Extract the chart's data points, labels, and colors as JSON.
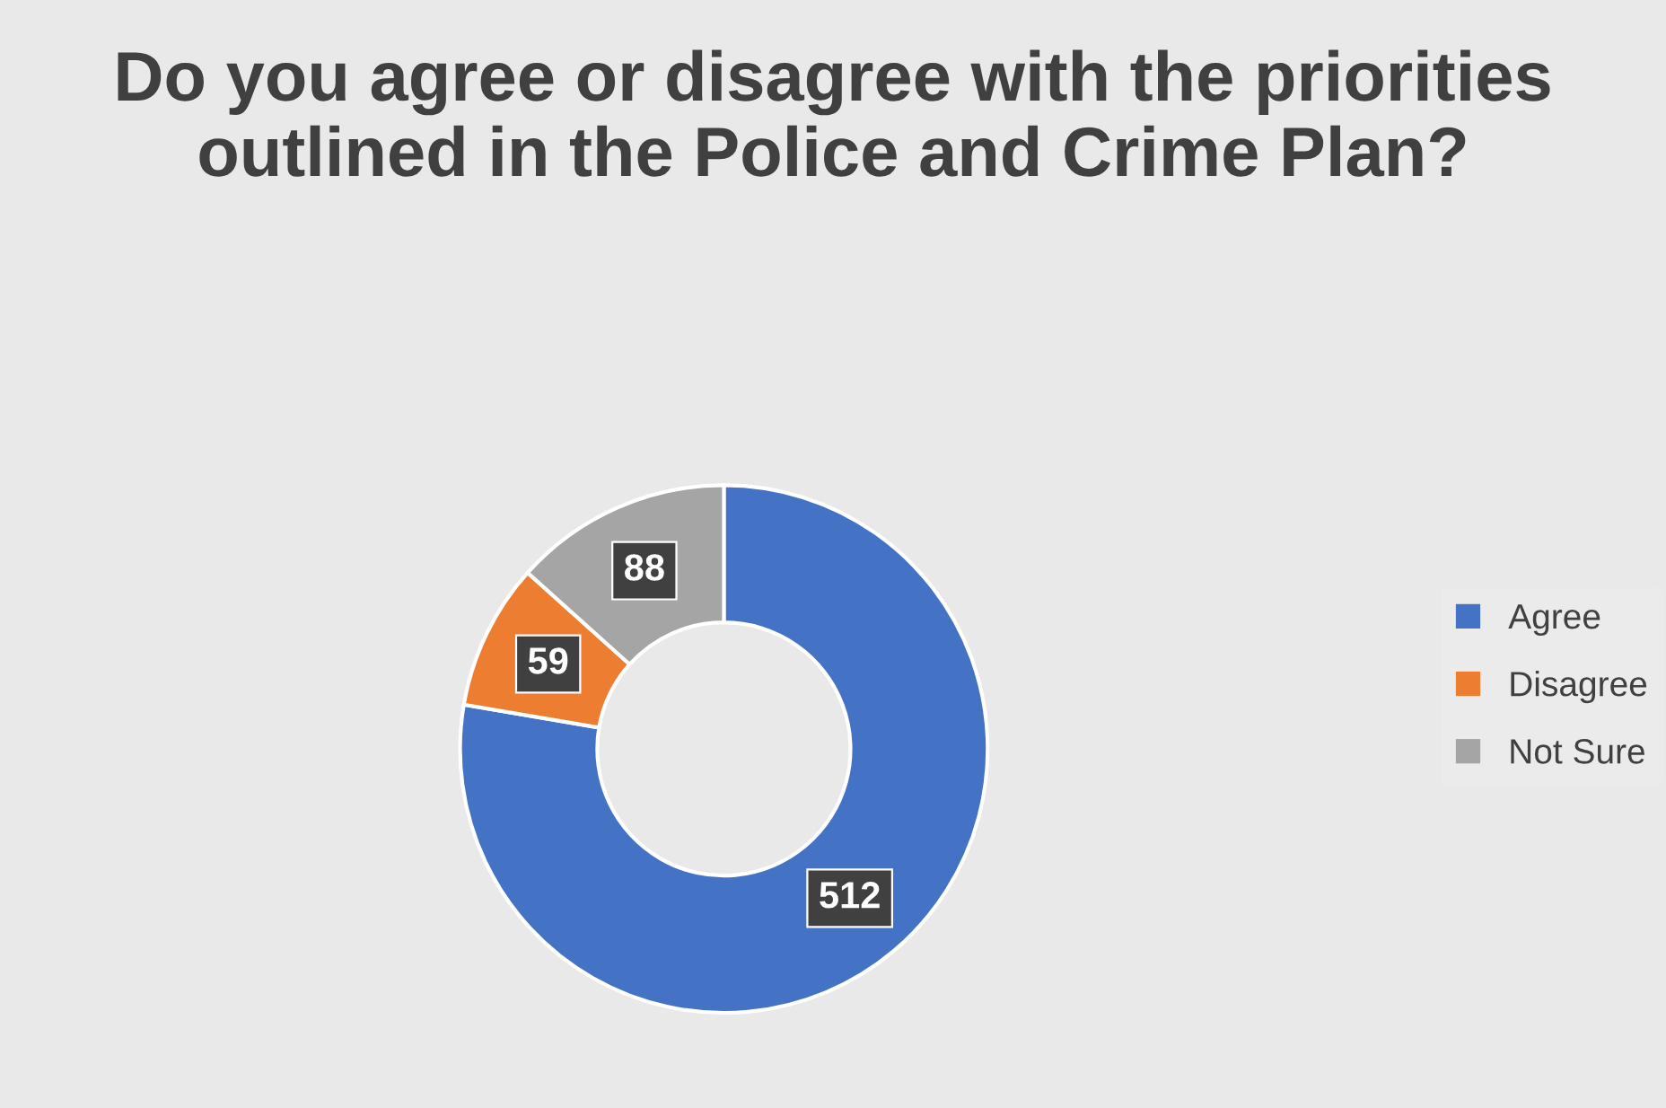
{
  "chart_data": {
    "type": "donut",
    "title": "Do you agree or disagree with the priorities outlined in the Police and Crime Plan?",
    "categories": [
      "Agree",
      "Disagree",
      "Not Sure"
    ],
    "values": [
      512,
      59,
      88
    ],
    "colors": [
      "#4472c4",
      "#ed7d31",
      "#a5a5a5"
    ],
    "data_labels": true,
    "legend": "right"
  }
}
